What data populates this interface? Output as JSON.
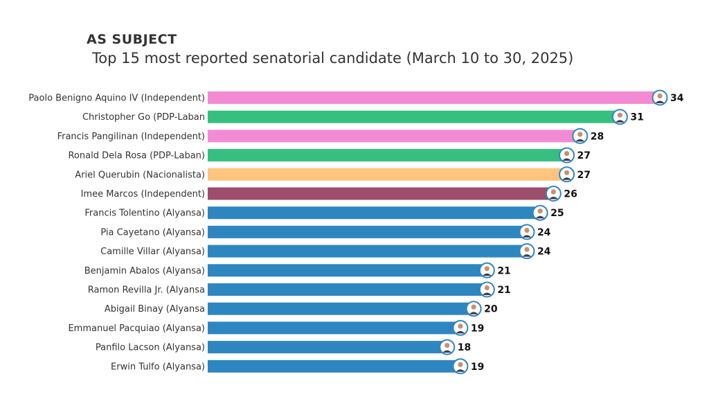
{
  "header": {
    "title": "AS SUBJECT",
    "subtitle": "Top 15 most reported senatorial candidate (March 10 to 30, 2025)"
  },
  "chart_data": {
    "type": "bar",
    "orientation": "horizontal",
    "title": "AS SUBJECT",
    "subtitle": "Top 15 most reported senatorial candidate (March 10 to 30, 2025)",
    "xlabel": "",
    "ylabel": "",
    "xlim": [
      0,
      34
    ],
    "grid": false,
    "categories": [
      "Paolo Benigno Aquino IV (Independent)",
      "Christopher Go (PDP-Laban",
      "Francis Pangilinan (Independent)",
      "Ronald Dela Rosa (PDP-Laban)",
      "Ariel Querubin (Nacionalista)",
      "Imee Marcos (Independent)",
      "Francis Tolentino (Alyansa)",
      "Pia Cayetano (Alyansa)",
      "Camille Villar (Alyansa)",
      "Benjamin Abalos (Alyansa)",
      "Ramon Revilla Jr. (Alyansa",
      "Abigail Binay (Alyansa",
      "Emmanuel Pacquiao (Alyansa)",
      "Panfilo Lacson (Alyansa)",
      "Erwin Tulfo (Alyansa)"
    ],
    "values": [
      34,
      31,
      28,
      27,
      27,
      26,
      25,
      24,
      24,
      21,
      21,
      20,
      19,
      18,
      19
    ],
    "bar_colors": [
      "#f38bd4",
      "#35c07f",
      "#f38bd4",
      "#35c07f",
      "#ffc47d",
      "#9c4e6a",
      "#2e86c1",
      "#2e86c1",
      "#2e86c1",
      "#2e86c1",
      "#2e86c1",
      "#2e86c1",
      "#2e86c1",
      "#2e86c1",
      "#2e86c1"
    ],
    "avatar_ring_color": "#2e86c1"
  }
}
